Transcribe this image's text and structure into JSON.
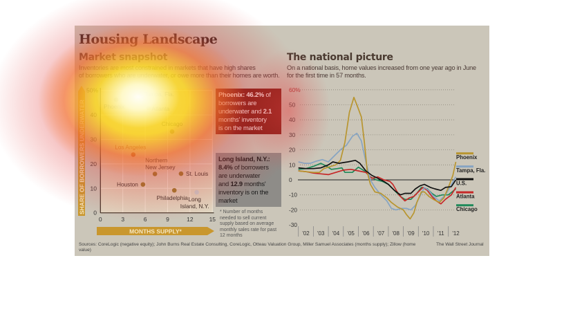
{
  "title": "Housing Landscape",
  "left": {
    "subtitle": "Market snapshot",
    "intro_line1": "Inventories are most constrained in markets that have high shares",
    "intro_line2": "of borrowers who are underwater, or owe more than their homes are worth.",
    "phoenix_callout": {
      "name": "Phoenix:",
      "pct": "46.2%",
      "t1": " of",
      "t2": "borrowers are",
      "t3": "underwater and ",
      "months": "2.1",
      "t4": "months' inventory",
      "t5": "is on the market"
    },
    "li_callout": {
      "name": "Long Island, N.Y.:",
      "pct": "8.4%",
      "t1": " of borrowers",
      "t2": "are underwater",
      "t3": "and ",
      "months": "12.9",
      "t4": " months'",
      "t5": "inventory is on the",
      "t6": "market"
    },
    "footnote": [
      "* Number of months",
      "needed to sell current",
      "supply based on average",
      "monthly sales rate for past",
      "12 months"
    ]
  },
  "right": {
    "subtitle": "The national picture",
    "intro_line1": "On a national basis, home values increased from one year ago in June",
    "intro_line2": "for the first time in 57 months."
  },
  "sources": "Sources: CoreLogic (negative equity); John Burns Real Estate Consulting, CoreLogic, Otteau Valuation Group, Miller Samuel Associates (months supply); Zillow (home value)",
  "credit": "The Wall Street Journal",
  "colors": {
    "scatter_dot": "#9a7a2a",
    "highlight_red": "#7a1a12",
    "highlight_grey": "#8e8c88",
    "axis_arrow": "#c9972e"
  },
  "chart_data": [
    {
      "type": "scatter",
      "xlabel": "MONTHS SUPPLY*",
      "ylabel": "SHARE OF BORROWERS UNDERWATER",
      "xlim": [
        0,
        15
      ],
      "ylim": [
        0,
        50
      ],
      "xticks": [
        "0",
        "3",
        "6",
        "9",
        "12",
        "15"
      ],
      "yticks": [
        "0",
        "10",
        "20",
        "30",
        "40",
        "50%"
      ],
      "grid": true,
      "points": [
        {
          "label": "Phoenix",
          "x": 2.1,
          "y": 46.2
        },
        {
          "label": "Tampa, Fla.",
          "x": 5.4,
          "y": 48.5
        },
        {
          "label": "Atlanta",
          "x": 6.4,
          "y": 42.9
        },
        {
          "label": "Chicago",
          "x": 9.6,
          "y": 33.2
        },
        {
          "label": "Los Angeles",
          "x": 4.4,
          "y": 23.8
        },
        {
          "label": "Northern|New Jersey",
          "x": 7.3,
          "y": 15.9
        },
        {
          "label": "St. Louis",
          "x": 10.8,
          "y": 16.0
        },
        {
          "label": "Houston",
          "x": 5.7,
          "y": 11.6
        },
        {
          "label": "Philadelphia",
          "x": 9.9,
          "y": 9.2
        },
        {
          "label": "Long|Island, N.Y.",
          "x": 12.9,
          "y": 8.4
        }
      ]
    },
    {
      "type": "line",
      "ylim": [
        -30,
        60
      ],
      "yticks": [
        "60%",
        "50",
        "40",
        "30",
        "20",
        "10",
        "0",
        "-10",
        "-20",
        "-30"
      ],
      "xticks": [
        "'02",
        "'03",
        "'04",
        "'05",
        "'06",
        "'07",
        "'08",
        "'09",
        "'10",
        "'11",
        "'12"
      ],
      "grid": true,
      "legend": "right",
      "series": [
        {
          "name": "Phoenix",
          "color": "#b8952f",
          "points": [
            [
              2002,
              6
            ],
            [
              2002.5,
              5.5
            ],
            [
              2003,
              5
            ],
            [
              2003.4,
              5
            ],
            [
              2003.7,
              7.5
            ],
            [
              2004,
              8.5
            ],
            [
              2004.5,
              10
            ],
            [
              2004.8,
              13
            ],
            [
              2005.1,
              25
            ],
            [
              2005.4,
              45
            ],
            [
              2005.7,
              55
            ],
            [
              2005.9,
              50
            ],
            [
              2006.2,
              42
            ],
            [
              2006.4,
              25
            ],
            [
              2006.6,
              5
            ],
            [
              2006.8,
              -3
            ],
            [
              2007.1,
              -8
            ],
            [
              2007.5,
              -9
            ],
            [
              2007.9,
              -12
            ],
            [
              2008.2,
              -15
            ],
            [
              2008.6,
              -18
            ],
            [
              2009,
              -20
            ],
            [
              2009.2,
              -23
            ],
            [
              2009.45,
              -26
            ],
            [
              2009.7,
              -22
            ],
            [
              2009.9,
              -15
            ],
            [
              2010.2,
              -8
            ],
            [
              2010.4,
              -8
            ],
            [
              2010.7,
              -11
            ],
            [
              2011,
              -13
            ],
            [
              2011.4,
              -15
            ],
            [
              2011.7,
              -12
            ],
            [
              2012,
              -5
            ],
            [
              2012.3,
              3
            ],
            [
              2012.5,
              12
            ]
          ]
        },
        {
          "name": "Tampa, Fla.",
          "color": "#86a4c2",
          "points": [
            [
              2002,
              12
            ],
            [
              2002.4,
              11
            ],
            [
              2002.8,
              11
            ],
            [
              2003.2,
              12.5
            ],
            [
              2003.6,
              13.5
            ],
            [
              2004,
              12
            ],
            [
              2004.3,
              15
            ],
            [
              2004.8,
              20
            ],
            [
              2005.2,
              23
            ],
            [
              2005.6,
              29
            ],
            [
              2005.9,
              31
            ],
            [
              2006.2,
              26
            ],
            [
              2006.5,
              12
            ],
            [
              2006.8,
              0
            ],
            [
              2007.1,
              -5
            ],
            [
              2007.5,
              -10
            ],
            [
              2007.9,
              -14
            ],
            [
              2008.2,
              -19
            ],
            [
              2008.5,
              -20
            ],
            [
              2008.9,
              -19
            ],
            [
              2009.2,
              -19
            ],
            [
              2009.5,
              -20
            ],
            [
              2009.8,
              -17
            ],
            [
              2010.1,
              -11
            ],
            [
              2010.4,
              -5
            ],
            [
              2010.7,
              -7
            ],
            [
              2011,
              -11
            ],
            [
              2011.4,
              -14
            ],
            [
              2011.8,
              -10
            ],
            [
              2012.1,
              -5
            ],
            [
              2012.5,
              2
            ]
          ]
        },
        {
          "name": "U.S.",
          "color": "#111111",
          "points": [
            [
              2002,
              8
            ],
            [
              2002.5,
              7.5
            ],
            [
              2003,
              7.5
            ],
            [
              2003.5,
              8
            ],
            [
              2004,
              10
            ],
            [
              2004.3,
              12
            ],
            [
              2004.7,
              11
            ],
            [
              2005,
              11.5
            ],
            [
              2005.3,
              12
            ],
            [
              2005.8,
              13
            ],
            [
              2006.1,
              11
            ],
            [
              2006.5,
              6
            ],
            [
              2006.9,
              3
            ],
            [
              2007.3,
              1
            ],
            [
              2007.7,
              -1
            ],
            [
              2008,
              -3
            ],
            [
              2008.4,
              -7
            ],
            [
              2008.8,
              -10
            ],
            [
              2009.1,
              -9
            ],
            [
              2009.5,
              -9
            ],
            [
              2009.8,
              -6
            ],
            [
              2010.1,
              -4
            ],
            [
              2010.4,
              -3
            ],
            [
              2010.8,
              -5
            ],
            [
              2011.1,
              -6
            ],
            [
              2011.5,
              -7
            ],
            [
              2011.8,
              -5
            ],
            [
              2012.2,
              -4.5
            ],
            [
              2012.5,
              0
            ]
          ]
        },
        {
          "name": "Atlanta",
          "color": "#c62828",
          "points": [
            [
              2002,
              6
            ],
            [
              2002.5,
              5.5
            ],
            [
              2003,
              4.5
            ],
            [
              2003.5,
              4
            ],
            [
              2004,
              3.5
            ],
            [
              2004.5,
              5
            ],
            [
              2005,
              6.5
            ],
            [
              2005.5,
              7
            ],
            [
              2006,
              6
            ],
            [
              2006.5,
              5
            ],
            [
              2006.9,
              1
            ],
            [
              2007.3,
              2
            ],
            [
              2007.7,
              0
            ],
            [
              2008.1,
              -1
            ],
            [
              2008.3,
              -3
            ],
            [
              2008.7,
              -10
            ],
            [
              2009.1,
              -14
            ],
            [
              2009.4,
              -12
            ],
            [
              2009.7,
              -11
            ],
            [
              2010,
              -8
            ],
            [
              2010.3,
              -5
            ],
            [
              2010.6,
              -7
            ],
            [
              2010.9,
              -11
            ],
            [
              2011.2,
              -14
            ],
            [
              2011.5,
              -16
            ],
            [
              2011.8,
              -13
            ],
            [
              2012.2,
              -10
            ],
            [
              2012.5,
              -5
            ]
          ]
        },
        {
          "name": "Chicago",
          "color": "#1f8a5a",
          "points": [
            [
              2002,
              7
            ],
            [
              2002.5,
              7.5
            ],
            [
              2003,
              9
            ],
            [
              2003.5,
              11
            ],
            [
              2003.9,
              9
            ],
            [
              2004.2,
              7
            ],
            [
              2004.6,
              7.5
            ],
            [
              2004.9,
              8
            ],
            [
              2005.1,
              5
            ],
            [
              2005.6,
              5
            ],
            [
              2006,
              8.5
            ],
            [
              2006.4,
              6
            ],
            [
              2006.8,
              2
            ],
            [
              2007.2,
              0
            ],
            [
              2007.6,
              -1
            ],
            [
              2008,
              -3
            ],
            [
              2008.4,
              -7
            ],
            [
              2008.8,
              -11
            ],
            [
              2009.1,
              -13
            ],
            [
              2009.5,
              -13
            ],
            [
              2009.9,
              -9
            ],
            [
              2010.2,
              -5
            ],
            [
              2010.6,
              -6
            ],
            [
              2010.9,
              -9
            ],
            [
              2011.2,
              -11
            ],
            [
              2011.6,
              -10
            ],
            [
              2012,
              -10
            ],
            [
              2012.5,
              -6
            ]
          ]
        }
      ]
    }
  ]
}
